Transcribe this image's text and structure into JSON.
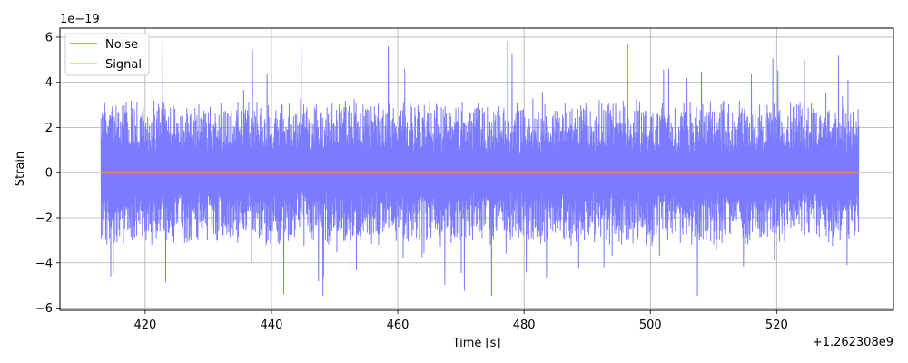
{
  "chart_data": {
    "type": "line",
    "title": "",
    "xlabel": "Time [s]",
    "ylabel": "Strain",
    "x_offset_label": "+1.262308e9",
    "y_scale_label": "1e−19",
    "xlim": [
      406.5,
      538.5
    ],
    "ylim": [
      -6.1,
      6.4
    ],
    "x_ticks": [
      420,
      440,
      460,
      480,
      500,
      520
    ],
    "x_tick_labels": [
      "420",
      "440",
      "460",
      "480",
      "500",
      "520"
    ],
    "y_ticks": [
      -6,
      -4,
      -2,
      0,
      2,
      4,
      6
    ],
    "y_tick_labels": [
      "−6",
      "−4",
      "−2",
      "0",
      "2",
      "4",
      "6"
    ],
    "grid": true,
    "legend_position": "upper-left",
    "series": [
      {
        "name": "Noise",
        "color": "#7b7bff",
        "x_range": [
          413,
          533
        ],
        "y_envelope_typical": [
          -3.0,
          3.0
        ],
        "y_peak_max": 5.85,
        "y_peak_min": -5.45
      },
      {
        "name": "Signal",
        "color": "#ffa726",
        "x": [
          413,
          533
        ],
        "y": [
          0,
          0
        ]
      }
    ]
  }
}
